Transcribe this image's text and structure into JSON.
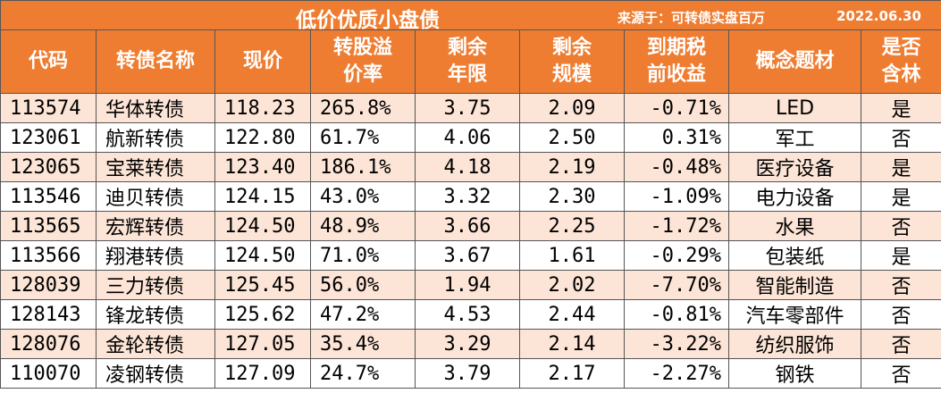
{
  "title": "低价优质小盘债",
  "source": "来源于：可转债实盘百万",
  "date": "2022.06.30",
  "headers": [
    "代码",
    "转债名称",
    "现价",
    "转股溢价率",
    "剩余年限",
    "剩余规模",
    "到期税前收益",
    "概念题材",
    "是否含林"
  ],
  "rows": [
    {
      "code": "113574",
      "name": "华体转债",
      "price": "118.23",
      "premium": "265.8%",
      "years": "3.75",
      "scale": "2.09",
      "yield": "-0.71%",
      "concept": "LED",
      "lin": "是"
    },
    {
      "code": "123061",
      "name": "航新转债",
      "price": "122.80",
      "premium": "61.7%",
      "years": "4.06",
      "scale": "2.50",
      "yield": "0.31%",
      "concept": "军工",
      "lin": "否"
    },
    {
      "code": "123065",
      "name": "宝莱转债",
      "price": "123.40",
      "premium": "186.1%",
      "years": "4.18",
      "scale": "2.19",
      "yield": "-0.48%",
      "concept": "医疗设备",
      "lin": "是"
    },
    {
      "code": "113546",
      "name": "迪贝转债",
      "price": "124.15",
      "premium": "43.0%",
      "years": "3.32",
      "scale": "2.30",
      "yield": "-1.09%",
      "concept": "电力设备",
      "lin": "是"
    },
    {
      "code": "113565",
      "name": "宏辉转债",
      "price": "124.50",
      "premium": "48.9%",
      "years": "3.66",
      "scale": "2.25",
      "yield": "-1.72%",
      "concept": "水果",
      "lin": "否"
    },
    {
      "code": "113566",
      "name": "翔港转债",
      "price": "124.50",
      "premium": "71.0%",
      "years": "3.67",
      "scale": "1.61",
      "yield": "-0.29%",
      "concept": "包装纸",
      "lin": "是"
    },
    {
      "code": "128039",
      "name": "三力转债",
      "price": "125.45",
      "premium": "56.0%",
      "years": "1.94",
      "scale": "2.02",
      "yield": "-7.70%",
      "concept": "智能制造",
      "lin": "否"
    },
    {
      "code": "128143",
      "name": "锋龙转债",
      "price": "125.62",
      "premium": "47.2%",
      "years": "4.53",
      "scale": "2.44",
      "yield": "-0.81%",
      "concept": "汽车零部件",
      "lin": "否"
    },
    {
      "code": "128076",
      "name": "金轮转债",
      "price": "127.05",
      "premium": "35.4%",
      "years": "3.29",
      "scale": "2.14",
      "yield": "-3.22%",
      "concept": "纺织服饰",
      "lin": "否"
    },
    {
      "code": "110070",
      "name": "凌钢转债",
      "price": "127.09",
      "premium": "24.7%",
      "years": "3.79",
      "scale": "2.17",
      "yield": "-2.27%",
      "concept": "钢铁",
      "lin": "否"
    }
  ]
}
